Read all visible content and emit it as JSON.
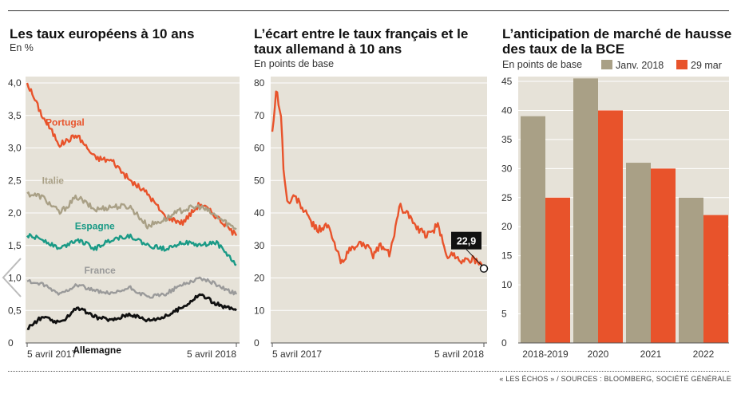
{
  "footer": {
    "source": "« LES ÉCHOS » / SOURCES : BLOOMBERG, SOCIÉTÉ GÉNÉRALE"
  },
  "colors": {
    "panel_bg": "#e6e2d8",
    "orange": "#e8532b",
    "khaki": "#a9a086",
    "teal": "#1a9a86",
    "gray": "#9a9a9a",
    "black": "#111111"
  },
  "chart_data": [
    {
      "type": "line",
      "title": "Les taux européens à 10 ans",
      "subtitle": "En %",
      "ylim": [
        0,
        4.0
      ],
      "yticks": [
        "0",
        "0,5",
        "1,0",
        "1,5",
        "2,0",
        "2,5",
        "3,0",
        "3,5",
        "4,0"
      ],
      "ytick_values": [
        0,
        0.5,
        1.0,
        1.5,
        2.0,
        2.5,
        3.0,
        3.5,
        4.0
      ],
      "xlim": [
        "2017-04-05",
        "2018-04-05"
      ],
      "xtick_labels": [
        "5 avril 2017",
        "5 avril 2018"
      ],
      "series": [
        {
          "name": "Portugal",
          "color": "#e8532b",
          "x": [
            "2017-04-05",
            "2017-05-01",
            "2017-06-01",
            "2017-07-01",
            "2017-08-01",
            "2017-09-01",
            "2017-10-01",
            "2017-11-01",
            "2017-12-01",
            "2018-01-01",
            "2018-02-01",
            "2018-03-01",
            "2018-04-05"
          ],
          "values": [
            4.0,
            3.5,
            3.05,
            3.2,
            2.85,
            2.8,
            2.5,
            2.3,
            1.95,
            1.85,
            2.15,
            1.95,
            1.65
          ]
        },
        {
          "name": "Italie",
          "color": "#a9a086",
          "x": [
            "2017-04-05",
            "2017-05-01",
            "2017-06-01",
            "2017-07-01",
            "2017-08-01",
            "2017-09-01",
            "2017-10-01",
            "2017-11-01",
            "2017-12-01",
            "2018-01-01",
            "2018-02-01",
            "2018-03-01",
            "2018-04-05"
          ],
          "values": [
            2.3,
            2.25,
            2.0,
            2.25,
            2.05,
            2.1,
            2.1,
            1.8,
            1.9,
            2.05,
            2.1,
            1.95,
            1.75
          ]
        },
        {
          "name": "Espagne",
          "color": "#1a9a86",
          "x": [
            "2017-04-05",
            "2017-05-01",
            "2017-06-01",
            "2017-07-01",
            "2017-08-01",
            "2017-09-01",
            "2017-10-01",
            "2017-11-01",
            "2017-12-01",
            "2018-01-01",
            "2018-02-01",
            "2018-03-01",
            "2018-04-05"
          ],
          "values": [
            1.65,
            1.6,
            1.45,
            1.6,
            1.45,
            1.6,
            1.65,
            1.5,
            1.45,
            1.55,
            1.5,
            1.55,
            1.2
          ]
        },
        {
          "name": "France",
          "color": "#9a9a9a",
          "x": [
            "2017-04-05",
            "2017-05-01",
            "2017-06-01",
            "2017-07-01",
            "2017-08-01",
            "2017-09-01",
            "2017-10-01",
            "2017-11-01",
            "2017-12-01",
            "2018-01-01",
            "2018-02-01",
            "2018-03-01",
            "2018-04-05"
          ],
          "values": [
            0.95,
            0.9,
            0.75,
            0.9,
            0.8,
            0.75,
            0.85,
            0.7,
            0.75,
            0.9,
            1.0,
            0.9,
            0.75
          ]
        },
        {
          "name": "Allemagne",
          "color": "#111111",
          "x": [
            "2017-04-05",
            "2017-05-01",
            "2017-06-01",
            "2017-07-01",
            "2017-08-01",
            "2017-09-01",
            "2017-10-01",
            "2017-11-01",
            "2017-12-01",
            "2018-01-01",
            "2018-02-01",
            "2018-03-01",
            "2018-04-05"
          ],
          "values": [
            0.22,
            0.4,
            0.3,
            0.55,
            0.4,
            0.35,
            0.45,
            0.35,
            0.4,
            0.55,
            0.75,
            0.6,
            0.5
          ]
        }
      ]
    },
    {
      "type": "line",
      "title": "L’écart entre le taux français et le taux allemand à 10 ans",
      "subtitle": "En points de base",
      "ylim": [
        0,
        80
      ],
      "yticks": [
        "0",
        "10",
        "20",
        "30",
        "40",
        "50",
        "60",
        "70",
        "80"
      ],
      "ytick_values": [
        0,
        10,
        20,
        30,
        40,
        50,
        60,
        70,
        80
      ],
      "xlim": [
        "2017-04-05",
        "2018-04-05"
      ],
      "xtick_labels": [
        "5 avril 2017",
        "5 avril 2018"
      ],
      "annotation": "22,9",
      "series": [
        {
          "name": "",
          "color": "#e8532b",
          "x": [
            "2017-04-05",
            "2017-04-12",
            "2017-04-20",
            "2017-04-25",
            "2017-05-01",
            "2017-05-15",
            "2017-06-01",
            "2017-06-20",
            "2017-07-10",
            "2017-08-01",
            "2017-08-20",
            "2017-09-10",
            "2017-09-25",
            "2017-10-10",
            "2017-10-25",
            "2017-11-10",
            "2017-11-25",
            "2017-12-10",
            "2017-12-28",
            "2018-01-15",
            "2018-02-01",
            "2018-02-15",
            "2018-03-01",
            "2018-03-15",
            "2018-04-05"
          ],
          "values": [
            65,
            78,
            70,
            52,
            43,
            45,
            40,
            35,
            36,
            25,
            29,
            31,
            27,
            30,
            27,
            42,
            40,
            35,
            33,
            36,
            27,
            27,
            25,
            26,
            22.9
          ]
        }
      ]
    },
    {
      "type": "bar",
      "title": "L’anticipation de marché de hausse des taux de la BCE",
      "subtitle": "En points de base",
      "categories": [
        "2018-2019",
        "2020",
        "2021",
        "2022"
      ],
      "ylim": [
        0,
        45
      ],
      "yticks": [
        "0",
        "5",
        "10",
        "15",
        "20",
        "25",
        "30",
        "35",
        "40",
        "45"
      ],
      "ytick_values": [
        0,
        5,
        10,
        15,
        20,
        25,
        30,
        35,
        40,
        45
      ],
      "series": [
        {
          "name": "Janv. 2018",
          "color": "#a9a086",
          "values": [
            39,
            45.5,
            31,
            25
          ]
        },
        {
          "name": "29 mar",
          "color": "#e8532b",
          "values": [
            25,
            40,
            30,
            22
          ]
        }
      ]
    }
  ]
}
